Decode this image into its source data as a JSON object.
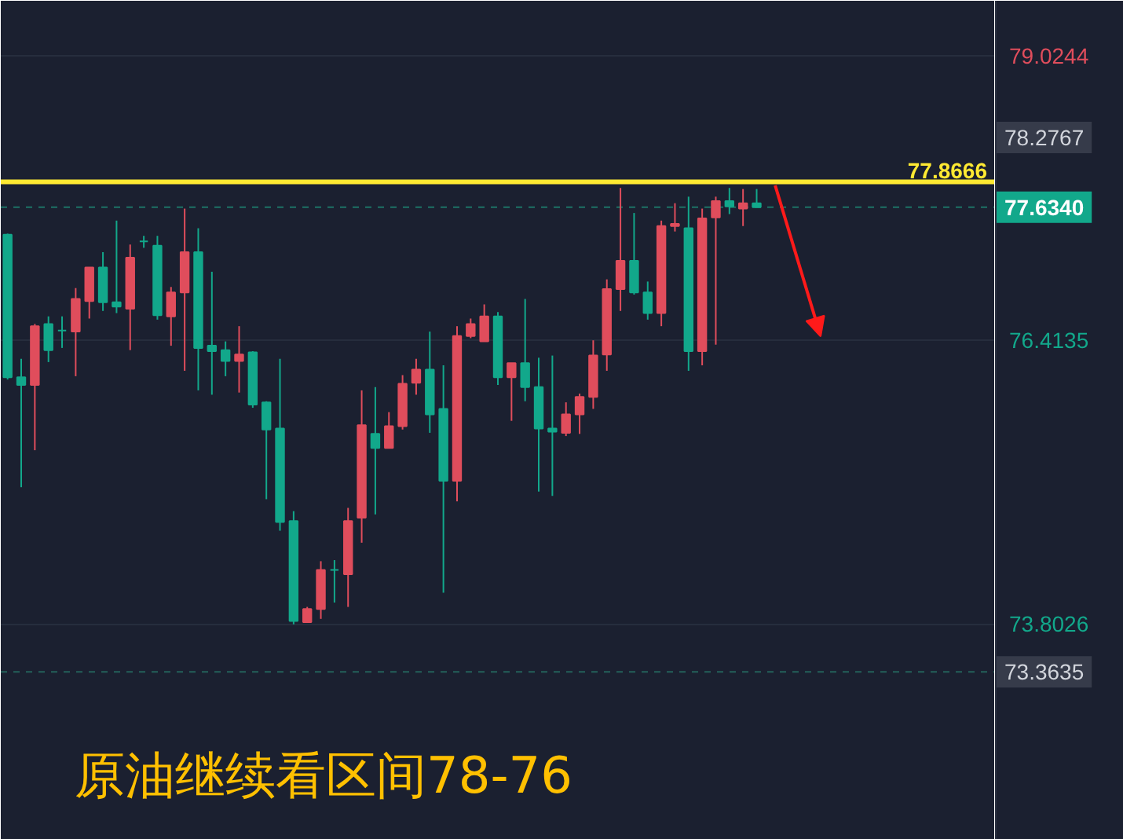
{
  "chart_data": {
    "type": "candlestick",
    "categories": [
      null,
      null,
      null,
      null,
      null,
      null,
      null,
      null,
      null,
      null,
      null,
      null,
      null,
      null,
      null,
      null,
      null,
      null,
      null,
      null,
      null,
      null,
      null,
      null,
      null,
      null,
      null,
      null,
      null,
      null,
      null,
      null,
      null,
      null,
      null,
      null,
      null,
      null,
      null,
      null,
      null,
      null,
      null,
      null,
      null,
      null,
      null,
      null,
      null,
      null,
      null,
      null,
      null,
      null,
      null,
      null,
      null,
      null,
      null,
      null,
      null,
      null,
      null,
      null,
      null,
      null,
      null,
      null,
      null,
      null,
      null,
      null,
      null
    ],
    "ohlc": [
      [
        77.38,
        77.39,
        76.05,
        76.07
      ],
      [
        76.07,
        76.24,
        75.06,
        76.0
      ],
      [
        76.0,
        76.56,
        75.4,
        76.54
      ],
      [
        76.56,
        76.63,
        76.21,
        76.32
      ],
      [
        76.5,
        76.63,
        76.34,
        76.5
      ],
      [
        76.49,
        76.89,
        76.08,
        76.79
      ],
      [
        76.77,
        77.08,
        76.61,
        77.08
      ],
      [
        77.08,
        77.22,
        76.68,
        76.76
      ],
      [
        76.76,
        77.51,
        76.66,
        76.72
      ],
      [
        76.7,
        77.29,
        76.32,
        77.17
      ],
      [
        77.32,
        77.37,
        77.26,
        77.32
      ],
      [
        77.28,
        77.37,
        76.6,
        76.64
      ],
      [
        76.63,
        76.9,
        76.36,
        76.85
      ],
      [
        76.85,
        77.62,
        76.13,
        77.22
      ],
      [
        77.22,
        77.44,
        75.95,
        76.34
      ],
      [
        76.36,
        77.04,
        75.91,
        76.31
      ],
      [
        76.32,
        76.4,
        76.08,
        76.22
      ],
      [
        76.22,
        76.54,
        75.93,
        76.28
      ],
      [
        76.3,
        76.31,
        75.79,
        75.82
      ],
      [
        75.84,
        75.85,
        74.95,
        75.59
      ],
      [
        75.6,
        76.24,
        74.66,
        74.74
      ],
      [
        74.75,
        74.84,
        73.8,
        73.83
      ],
      [
        73.82,
        73.96,
        73.82,
        73.94
      ],
      [
        73.94,
        74.38,
        73.85,
        74.3
      ],
      [
        74.3,
        74.39,
        74.0,
        74.3
      ],
      [
        74.26,
        74.87,
        73.96,
        74.75
      ],
      [
        74.78,
        75.95,
        74.55,
        75.63
      ],
      [
        75.55,
        75.98,
        74.81,
        75.42
      ],
      [
        75.42,
        75.75,
        75.42,
        75.62
      ],
      [
        75.62,
        76.09,
        75.59,
        76.01
      ],
      [
        76.02,
        76.24,
        75.91,
        76.14
      ],
      [
        76.14,
        76.49,
        75.56,
        75.73
      ],
      [
        75.78,
        76.18,
        74.09,
        75.12
      ],
      [
        75.12,
        76.54,
        74.93,
        76.45
      ],
      [
        76.45,
        76.61,
        76.43,
        76.56
      ],
      [
        76.4,
        76.74,
        76.4,
        76.63
      ],
      [
        76.63,
        76.67,
        76.0,
        76.07
      ],
      [
        76.07,
        76.2,
        75.67,
        76.2
      ],
      [
        76.2,
        76.79,
        75.85,
        75.98
      ],
      [
        75.98,
        76.25,
        75.02,
        75.6
      ],
      [
        75.6,
        76.27,
        74.98,
        75.57
      ],
      [
        75.56,
        75.84,
        75.53,
        75.73
      ],
      [
        75.73,
        75.92,
        75.55,
        75.89
      ],
      [
        75.89,
        76.41,
        75.78,
        76.27
      ],
      [
        76.28,
        76.97,
        76.13,
        76.88
      ],
      [
        76.88,
        77.81,
        76.68,
        77.14
      ],
      [
        77.14,
        77.58,
        76.83,
        76.85
      ],
      [
        76.85,
        76.95,
        76.6,
        76.66
      ],
      [
        76.66,
        77.51,
        76.54,
        77.46
      ],
      [
        77.46,
        77.67,
        77.41,
        77.48
      ],
      [
        77.44,
        77.73,
        76.13,
        76.31
      ],
      [
        76.31,
        77.62,
        76.18,
        77.53
      ],
      [
        77.54,
        77.73,
        76.37,
        77.69
      ],
      [
        77.69,
        77.81,
        77.57,
        77.64
      ],
      [
        77.62,
        77.8,
        77.46,
        77.67
      ],
      [
        77.67,
        77.8,
        77.634,
        77.634
      ],
      null,
      null,
      null,
      null,
      null,
      null,
      null,
      null,
      null,
      null,
      null,
      null,
      null,
      null,
      null,
      null,
      null
    ],
    "colors": [
      "#12a88b",
      "#12a88b",
      "#e04d5c",
      "#12a88b",
      "#12a88b",
      "#e04d5c",
      "#e04d5c",
      "#12a88b",
      "#12a88b",
      "#e04d5c",
      "#12a88b",
      "#12a88b",
      "#e04d5c",
      "#e04d5c",
      "#12a88b",
      "#12a88b",
      "#12a88b",
      "#e04d5c",
      "#12a88b",
      "#12a88b",
      "#12a88b",
      "#12a88b",
      "#e04d5c",
      "#e04d5c",
      "#12a88b",
      "#e04d5c",
      "#e04d5c",
      "#12a88b",
      "#e04d5c",
      "#e04d5c",
      "#e04d5c",
      "#12a88b",
      "#12a88b",
      "#e04d5c",
      "#e04d5c",
      "#e04d5c",
      "#12a88b",
      "#e04d5c",
      "#12a88b",
      "#12a88b",
      "#12a88b",
      "#e04d5c",
      "#e04d5c",
      "#e04d5c",
      "#e04d5c",
      "#e04d5c",
      "#12a88b",
      "#12a88b",
      "#e04d5c",
      "#e04d5c",
      "#12a88b",
      "#e04d5c",
      "#e04d5c",
      "#12a88b",
      "#e04d5c",
      "#12a88b",
      null,
      null,
      null,
      null,
      null,
      null,
      null,
      null,
      null,
      null,
      null,
      null,
      null,
      null,
      null,
      null,
      null
    ],
    "ylim": [
      71.82,
      79.53
    ],
    "yticks": [
      79.0244,
      76.4135,
      73.8026
    ],
    "grid": "y",
    "ref_lines": [
      {
        "axis": "y",
        "value": 77.8666,
        "label": "77.8666",
        "color": "#ffe932",
        "line_style": "solid"
      },
      {
        "axis": "y",
        "value": 77.634,
        "label": "77.6340",
        "color": "#1d7266",
        "line_style": "dashed"
      },
      {
        "axis": "y",
        "value": 73.3635,
        "label": "73.3635",
        "color": "#24605a",
        "line_style": "dashed"
      }
    ],
    "annotations": [
      "78.2767",
      "原油继续看区间78-76"
    ]
  }
}
